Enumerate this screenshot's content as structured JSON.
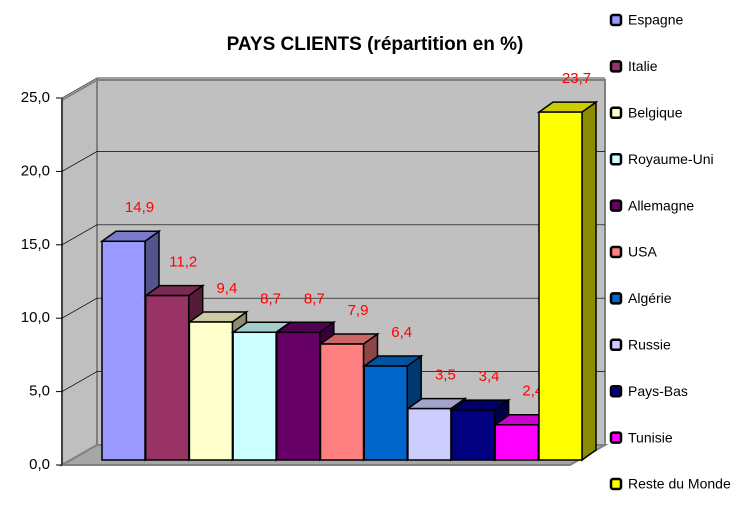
{
  "chart_data": {
    "type": "bar3d",
    "title": "PAYS CLIENTS (répartition en %)",
    "categories": [
      "Espagne",
      "Italie",
      "Belgique",
      "Royaume-Uni",
      "Allemagne",
      "USA",
      "Algérie",
      "Russie",
      "Pays-Bas",
      "Tunisie",
      "Reste du Monde"
    ],
    "series": [
      {
        "name": "PAYS CLIENTS",
        "values": [
          14.9,
          11.2,
          9.4,
          8.7,
          8.7,
          7.9,
          6.4,
          3.5,
          3.4,
          2.4,
          23.7
        ],
        "value_labels": [
          "14,9",
          "11,2",
          "9,4",
          "8,7",
          "8,7",
          "7,9",
          "6,4",
          "3,5",
          "3,4",
          "2,4",
          "23,7"
        ],
        "colors": [
          "#9999ff",
          "#993366",
          "#ffffcc",
          "#ccffff",
          "#660066",
          "#ff8080",
          "#0066cc",
          "#ccccff",
          "#000080",
          "#ff00ff",
          "#ffff00"
        ]
      }
    ],
    "ylim": [
      0,
      25
    ],
    "yticks": [
      {
        "value": 0,
        "label": "0,0"
      },
      {
        "value": 5,
        "label": "5,0"
      },
      {
        "value": 10,
        "label": "10,0"
      },
      {
        "value": 15,
        "label": "15,0"
      },
      {
        "value": 20,
        "label": "20,0"
      },
      {
        "value": 25,
        "label": "25,0"
      }
    ],
    "grid": true,
    "legend": "right"
  }
}
